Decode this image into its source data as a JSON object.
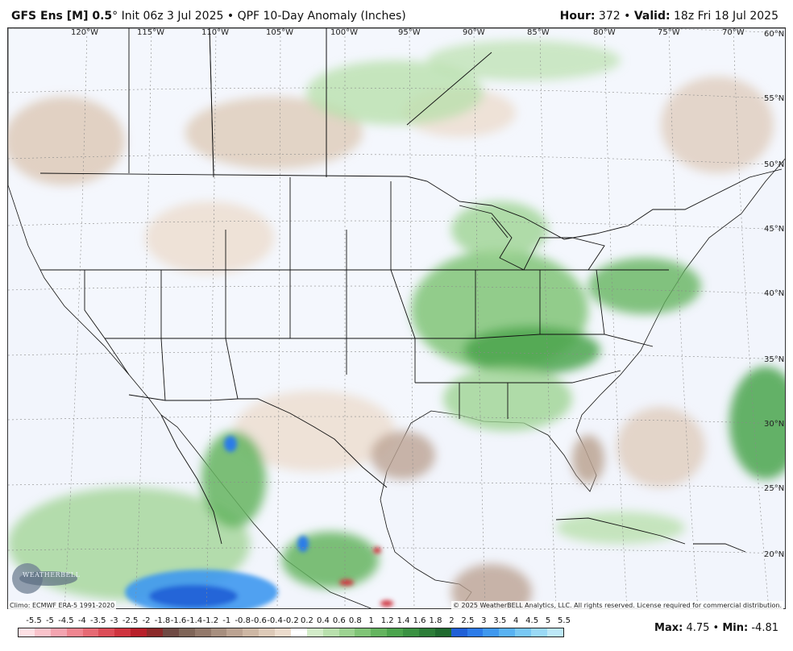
{
  "header": {
    "model": "GFS Ens [M] 0.5",
    "degree": "°",
    "init": "Init 06z 3 Jul 2025",
    "bullet": "•",
    "product": "QPF 10-Day Anomaly (Inches)",
    "hour_label": "Hour:",
    "hour_value": "372",
    "valid_label": "Valid:",
    "valid_value": "18z Fri 18 Jul 2025"
  },
  "map": {
    "lon_labels": [
      "120°W",
      "115°W",
      "110°W",
      "105°W",
      "100°W",
      "95°W",
      "90°W",
      "85°W",
      "80°W",
      "75°W",
      "70°W"
    ],
    "lat_labels": [
      "60°N",
      "55°N",
      "50°N",
      "45°N",
      "40°N",
      "35°N",
      "30°N",
      "25°N",
      "20°N"
    ],
    "ocean_color": "#f2f5fc",
    "land_border_color": "#111111"
  },
  "footer": {
    "climo": "Climo: ECMWF ERA-5 1991-2020",
    "copyright": "© 2025 WeatherBELL Analytics, LLC. All rights reserved. License required for commercial distribution.",
    "logo_text": "WEATHERBELL",
    "max_label": "Max:",
    "max_value": "4.75",
    "separator": "•",
    "min_label": "Min:",
    "min_value": "-4.81"
  },
  "legend": {
    "ticks": [
      "-5.5",
      "-5",
      "-4.5",
      "-4",
      "-3.5",
      "-3",
      "-2.5",
      "-2",
      "-1.8",
      "-1.6",
      "-1.4",
      "-1.2",
      "-1",
      "-0.8",
      "-0.6",
      "-0.4",
      "-0.2",
      "0.2",
      "0.4",
      "0.6",
      "0.8",
      "1",
      "1.2",
      "1.4",
      "1.6",
      "1.8",
      "2",
      "2.5",
      "3",
      "3.5",
      "4",
      "4.5",
      "5",
      "5.5"
    ],
    "colors": [
      "#fde0e4",
      "#f9c3cb",
      "#f4a4b0",
      "#ef8590",
      "#e66a74",
      "#dc4d58",
      "#cf343f",
      "#b8202a",
      "#8c2a2a",
      "#6f4a44",
      "#7f6558",
      "#93796b",
      "#a78f7f",
      "#bba392",
      "#cdb7a4",
      "#ddcab8",
      "#ecdccd",
      "#ffffff",
      "#d3ecc9",
      "#b9e0ad",
      "#9dd392",
      "#80c477",
      "#64b45f",
      "#4ba44d",
      "#3a9142",
      "#2c7d38",
      "#1f6a2f",
      "#1f5fd6",
      "#2c7be8",
      "#3f98ef",
      "#59b2f2",
      "#79c8f4",
      "#9ad9f6",
      "#bde8f8"
    ]
  }
}
